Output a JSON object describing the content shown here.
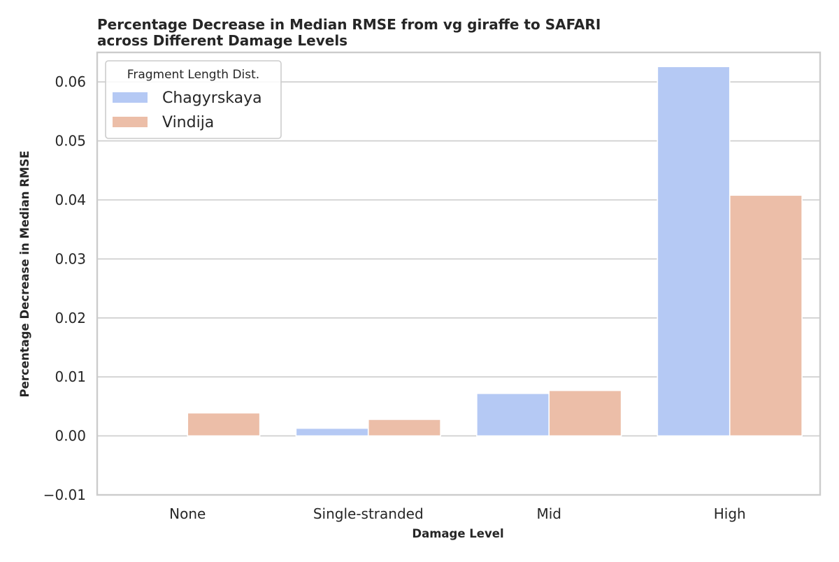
{
  "chart_data": {
    "type": "bar",
    "title": "Percentage Decrease in Median RMSE from vg giraffe to SAFARI\nacross Different Damage Levels",
    "xlabel": "Damage Level",
    "ylabel": "Percentage Decrease in Median RMSE",
    "categories": [
      "None",
      "Single-stranded",
      "Mid",
      "High"
    ],
    "series": [
      {
        "name": "Chagyrskaya",
        "color": "#b5c9f4",
        "values": [
          0.0,
          0.0013,
          0.0072,
          0.0626
        ]
      },
      {
        "name": "Vindija",
        "color": "#ecbea8",
        "values": [
          0.0039,
          0.0028,
          0.0077,
          0.0408
        ]
      }
    ],
    "ylim": [
      -0.01,
      0.065
    ],
    "yticks": [
      -0.01,
      0.0,
      0.01,
      0.02,
      0.03,
      0.04,
      0.05,
      0.06
    ],
    "ytick_labels": [
      "−0.01",
      "0.00",
      "0.01",
      "0.02",
      "0.03",
      "0.04",
      "0.05",
      "0.06"
    ],
    "grid": true,
    "legend": {
      "title": "Fragment Length Dist.",
      "placement": "top-left"
    }
  }
}
